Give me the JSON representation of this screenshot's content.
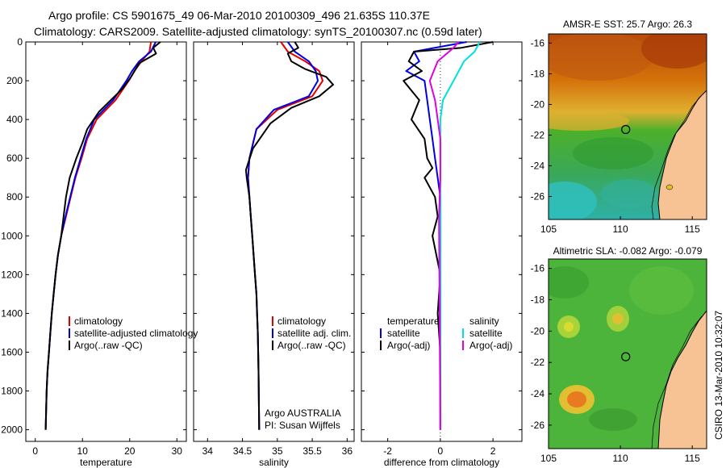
{
  "header": {
    "line1": "Argo profile: CS 5901675_49 06-Mar-2010 20100309_496 21.635S 110.37E",
    "line2": "Climatology: CARS2009. Satellite-adjusted climatology: synTS_20100307.nc (0.59d later)"
  },
  "colors": {
    "climatology": "#e00000",
    "satellite": "#0000e0",
    "argo": "#000000",
    "sal_satellite": "#00e0e0",
    "sal_argo": "#e000e0"
  },
  "chart_data": [
    {
      "type": "line",
      "id": "temperature",
      "xlabel": "temperature",
      "ylabel": "",
      "xlim": [
        -2,
        32
      ],
      "ylim": [
        0,
        2060
      ],
      "y_reversed": true,
      "xticks": [
        0,
        10,
        20,
        30
      ],
      "xtick_labels": [
        "0",
        "10",
        "20",
        "30"
      ],
      "yticks": [
        0,
        200,
        400,
        600,
        800,
        1000,
        1200,
        1400,
        1600,
        1800,
        2000
      ],
      "ytick_labels": [
        "0",
        "200",
        "400",
        "600",
        "800",
        "1000",
        "1200",
        "1400",
        "1600",
        "1800",
        "2000"
      ],
      "legend": [
        "climatology",
        "satellite-adjusted climatology",
        "Argo(..raw -QC)"
      ],
      "series": [
        {
          "name": "climatology",
          "color": "#e00000",
          "x": [
            24.5,
            24.2,
            22.5,
            21.0,
            19.8,
            17.0,
            13.0,
            11.0,
            9.8,
            8.5,
            7.5,
            6.5,
            5.5,
            4.8,
            4.3,
            3.9,
            3.5,
            3.2,
            2.9,
            2.6,
            2.4,
            2.2
          ],
          "y": [
            0,
            50,
            100,
            150,
            200,
            300,
            400,
            500,
            600,
            700,
            800,
            900,
            1000,
            1100,
            1200,
            1300,
            1400,
            1500,
            1600,
            1700,
            1800,
            2000
          ]
        },
        {
          "name": "satellite-adjusted climatology",
          "color": "#0000e0",
          "x": [
            25.5,
            24.5,
            22.0,
            20.5,
            19.3,
            16.5,
            12.5,
            10.8,
            9.6,
            8.4,
            7.4,
            6.4,
            5.5,
            4.8,
            4.3,
            3.9,
            3.5,
            3.2,
            2.9,
            2.6,
            2.4,
            2.2
          ],
          "y": [
            0,
            50,
            100,
            150,
            200,
            300,
            400,
            500,
            600,
            700,
            800,
            900,
            1000,
            1100,
            1200,
            1300,
            1400,
            1500,
            1600,
            1700,
            1800,
            2000
          ]
        },
        {
          "name": "Argo(..raw -QC)",
          "color": "#000000",
          "x": [
            26.5,
            25.0,
            25.6,
            22.0,
            20.3,
            18.5,
            16.0,
            13.5,
            11.0,
            10.0,
            8.7,
            7.3,
            6.5,
            5.5,
            4.8,
            4.3,
            3.9,
            3.5,
            3.2,
            2.9,
            2.6,
            2.4,
            2.2
          ],
          "y": [
            0,
            30,
            60,
            110,
            180,
            240,
            300,
            360,
            450,
            520,
            600,
            700,
            800,
            1000,
            1100,
            1200,
            1300,
            1400,
            1500,
            1600,
            1700,
            1800,
            2000
          ]
        }
      ]
    },
    {
      "type": "line",
      "id": "salinity",
      "xlabel": "salinity",
      "ylabel": "",
      "xlim": [
        33.8,
        36.1
      ],
      "ylim": [
        0,
        2060
      ],
      "y_reversed": true,
      "xticks": [
        34,
        34.5,
        35,
        35.5,
        36
      ],
      "xtick_labels": [
        "34",
        "34.5",
        "35",
        "35.5",
        "36"
      ],
      "legend": [
        "climatology",
        "satellite adj. clim.",
        "Argo(..raw -QC)"
      ],
      "annotations": [
        "Argo AUSTRALIA",
        "PI: Susan Wijffels"
      ],
      "series": [
        {
          "name": "climatology",
          "color": "#e00000",
          "x": [
            35.05,
            35.15,
            35.4,
            35.6,
            35.65,
            35.5,
            35.0,
            34.7,
            34.6,
            34.58,
            34.6,
            34.62,
            34.64,
            34.66,
            34.68,
            34.7,
            34.71,
            34.72,
            34.73,
            34.74
          ],
          "y": [
            0,
            50,
            100,
            150,
            200,
            280,
            350,
            450,
            600,
            700,
            800,
            900,
            1000,
            1100,
            1200,
            1300,
            1400,
            1500,
            1700,
            2000
          ]
        },
        {
          "name": "satellite adj. clim.",
          "color": "#0000e0",
          "x": [
            35.15,
            35.25,
            35.45,
            35.55,
            35.58,
            35.45,
            34.95,
            34.7,
            34.6,
            34.58,
            34.6,
            34.62,
            34.64,
            34.66,
            34.68,
            34.7,
            34.71,
            34.72,
            34.73,
            34.74
          ],
          "y": [
            0,
            50,
            100,
            150,
            200,
            280,
            350,
            450,
            600,
            700,
            800,
            900,
            1000,
            1100,
            1200,
            1300,
            1400,
            1500,
            1700,
            2000
          ]
        },
        {
          "name": "Argo(..raw -QC)",
          "color": "#000000",
          "x": [
            35.25,
            35.3,
            35.15,
            35.2,
            35.4,
            35.7,
            35.8,
            35.6,
            35.2,
            34.9,
            34.65,
            34.55,
            34.56,
            34.6,
            34.62,
            34.64,
            34.66,
            34.68,
            34.7,
            34.71,
            34.72,
            34.73,
            34.74
          ],
          "y": [
            0,
            30,
            60,
            100,
            140,
            180,
            220,
            280,
            340,
            420,
            550,
            660,
            700,
            800,
            900,
            1000,
            1100,
            1200,
            1300,
            1400,
            1500,
            1700,
            2000
          ]
        }
      ]
    },
    {
      "type": "line",
      "id": "difference",
      "xlabel": "difference from climatology",
      "ylabel": "",
      "xlim": [
        -3,
        3.1
      ],
      "ylim": [
        0,
        2060
      ],
      "y_reversed": true,
      "xticks": [
        -2,
        0,
        2
      ],
      "xtick_labels": [
        "-2",
        "0",
        "2"
      ],
      "zero_line": "dotted",
      "legend_left_title": "temperature",
      "legend_right_title": "salinity",
      "legend_left": [
        "satellite",
        "Argo(-adj)"
      ],
      "legend_right": [
        "satellite",
        "Argo(-adj)"
      ],
      "series": [
        {
          "name": "temperature satellite",
          "color": "#0000e0",
          "x": [
            1.0,
            -1.0,
            -0.8,
            -1.3,
            -0.6,
            -0.5,
            -0.4,
            -0.3,
            -0.2,
            -0.1,
            0.0,
            0.0,
            0.0
          ],
          "y": [
            0,
            50,
            100,
            150,
            200,
            300,
            400,
            500,
            600,
            700,
            800,
            1000,
            2000
          ]
        },
        {
          "name": "temperature Argo(-adj)",
          "color": "#000000",
          "x": [
            2.0,
            0.8,
            -1.0,
            -1.2,
            -0.7,
            -1.4,
            -0.8,
            -1.1,
            -0.6,
            -0.5,
            -0.3,
            -0.6,
            -0.2,
            -0.1,
            -0.3,
            0.0,
            -0.1,
            0.0,
            0.0
          ],
          "y": [
            0,
            30,
            50,
            100,
            150,
            200,
            300,
            400,
            500,
            600,
            650,
            700,
            800,
            900,
            1000,
            1200,
            1400,
            1600,
            2000
          ]
        },
        {
          "name": "salinity satellite",
          "color": "#00e0e0",
          "x": [
            1.5,
            1.3,
            0.9,
            0.5,
            0.1,
            0.0,
            0.0,
            0.0,
            0.0
          ],
          "y": [
            0,
            50,
            100,
            200,
            300,
            400,
            600,
            800,
            2000
          ]
        },
        {
          "name": "salinity Argo(-adj)",
          "color": "#e000e0",
          "x": [
            0.7,
            0.5,
            -0.1,
            -0.4,
            -0.2,
            -0.1,
            0.0,
            0.0,
            -0.05,
            0.0
          ],
          "y": [
            0,
            30,
            100,
            200,
            300,
            400,
            500,
            700,
            900,
            2000
          ]
        }
      ]
    },
    {
      "type": "heatmap",
      "id": "sst_map",
      "title": "AMSR-E SST: 25.7 Argo: 26.3",
      "xlim": [
        105,
        116
      ],
      "ylim": [
        -27.5,
        -15.4
      ],
      "xticks": [
        105,
        110,
        115
      ],
      "xtick_labels": [
        "105",
        "110",
        "115"
      ],
      "yticks": [
        -16,
        -18,
        -20,
        -22,
        -24,
        -26
      ],
      "ytick_labels": [
        "-16",
        "-18",
        "-20",
        "-22",
        "-24",
        "-26"
      ],
      "marker": {
        "lon": 110.37,
        "lat": -21.635
      }
    },
    {
      "type": "heatmap",
      "id": "sla_map",
      "title": "Altimetric SLA: -0.082 Argo: -0.079",
      "xlim": [
        105,
        116
      ],
      "ylim": [
        -27.5,
        -15.4
      ],
      "xticks": [
        105,
        110,
        115
      ],
      "xtick_labels": [
        "105",
        "110",
        "115"
      ],
      "yticks": [
        -16,
        -18,
        -20,
        -22,
        -24,
        -26
      ],
      "ytick_labels": [
        "-16",
        "-18",
        "-20",
        "-22",
        "-24",
        "-26"
      ],
      "marker": {
        "lon": 110.37,
        "lat": -21.635
      }
    }
  ],
  "footer": {
    "credit": "CSIRO 13-Mar-2010 10:32:07"
  }
}
